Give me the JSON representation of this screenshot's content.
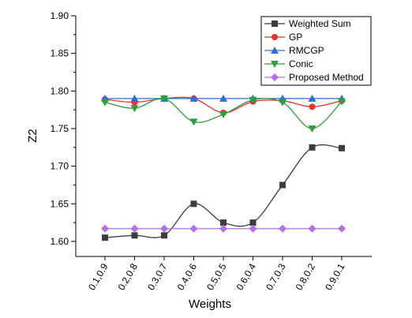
{
  "chart_data": {
    "type": "line",
    "title": "",
    "xlabel": "Weights",
    "ylabel": "Z2",
    "categories": [
      "0.1,0.9",
      "0.2,0.8",
      "0.3,0.7",
      "0.4,0.6",
      "0.5,0.5",
      "0.6,0.4",
      "0.7,0.3",
      "0.8,0.2",
      "0.9,0.1"
    ],
    "ylim": [
      1.58,
      1.9
    ],
    "yticks": [
      "1.60",
      "1.65",
      "1.70",
      "1.75",
      "1.80",
      "1.85",
      "1.90"
    ],
    "grid": false,
    "legend_position": "top-right",
    "series": [
      {
        "name": "Weighted Sum",
        "color": "#3d3d3d",
        "marker": "square",
        "values": [
          1.605,
          1.608,
          1.608,
          1.65,
          1.625,
          1.625,
          1.675,
          1.725,
          1.724
        ]
      },
      {
        "name": "GP",
        "color": "#e8302d",
        "marker": "circle",
        "values": [
          1.789,
          1.785,
          1.79,
          1.79,
          1.771,
          1.786,
          1.787,
          1.779,
          1.787
        ]
      },
      {
        "name": "RMCGP",
        "color": "#2e6fd6",
        "marker": "triangle-up",
        "values": [
          1.79,
          1.79,
          1.79,
          1.79,
          1.79,
          1.79,
          1.79,
          1.79,
          1.79
        ]
      },
      {
        "name": "Conic",
        "color": "#2f9e3e",
        "marker": "triangle-down",
        "values": [
          1.785,
          1.777,
          1.79,
          1.759,
          1.769,
          1.788,
          1.785,
          1.75,
          1.786
        ]
      },
      {
        "name": "Proposed Method",
        "color": "#b56ef0",
        "marker": "diamond",
        "values": [
          1.617,
          1.617,
          1.617,
          1.617,
          1.617,
          1.617,
          1.617,
          1.617,
          1.617
        ]
      }
    ]
  }
}
